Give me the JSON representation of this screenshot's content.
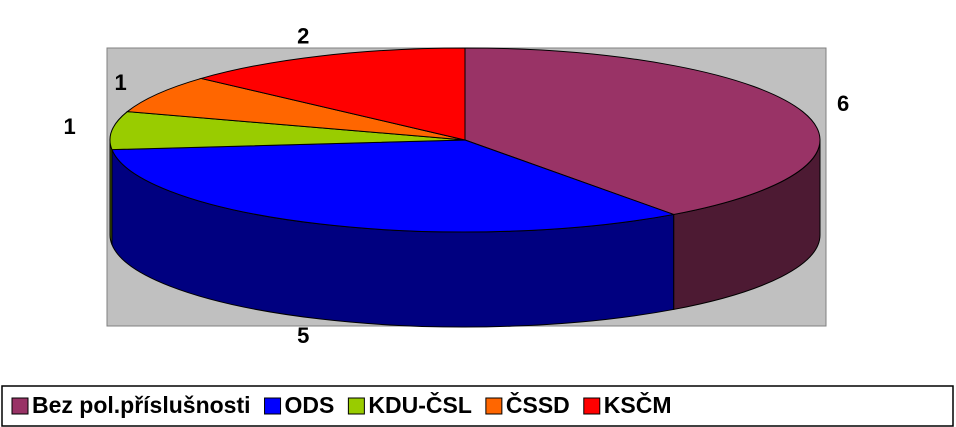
{
  "chart_data": {
    "type": "pie",
    "categories": [
      "Bez pol.příslušnosti",
      "ODS",
      "KDU-ČSL",
      "ČSSD",
      "KSČM"
    ],
    "values": [
      6,
      5,
      1,
      1,
      2
    ],
    "colors": [
      "#993366",
      "#0000ff",
      "#99cc00",
      "#ff6600",
      "#ff0000"
    ]
  }
}
